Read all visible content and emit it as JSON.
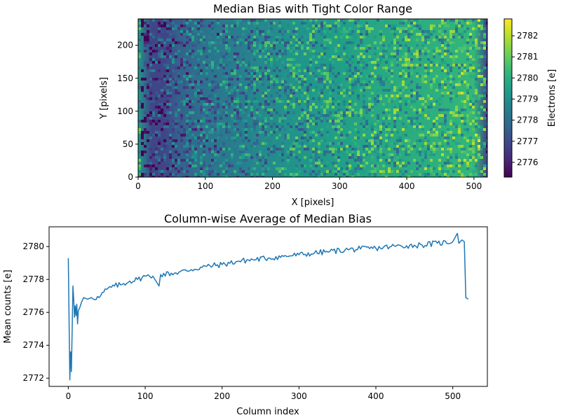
{
  "chart_data": [
    {
      "type": "heatmap",
      "title": "Median Bias with Tight Color Range",
      "xlabel": "X [pixels]",
      "ylabel": "Y [pixels]",
      "xlim": [
        0,
        520
      ],
      "ylim": [
        0,
        240
      ],
      "x_ticks": [
        0,
        100,
        200,
        300,
        400,
        500
      ],
      "y_ticks": [
        0,
        50,
        100,
        150,
        200
      ],
      "colormap": "viridis",
      "colorbar": {
        "label": "Electrons [e]",
        "range": [
          2775.3,
          2782.8
        ],
        "ticks": [
          2776,
          2777,
          2778,
          2779,
          2780,
          2781,
          2782
        ]
      },
      "trend": "values rise from about 2776 e on the left edge to about 2780.5 e near x=510, with a dark (low) column band near x=0-40 and a fine grid pattern"
    },
    {
      "type": "line",
      "title": "Column-wise Average of Median Bias",
      "xlabel": "Column index",
      "ylabel": "Mean counts [e]",
      "xlim": [
        -25,
        545
      ],
      "ylim": [
        2771.5,
        2781.2
      ],
      "x_ticks": [
        0,
        100,
        200,
        300,
        400,
        500
      ],
      "y_ticks": [
        2772,
        2774,
        2776,
        2778,
        2780
      ],
      "color": "#1f77b4",
      "points": [
        [
          0,
          2779.3
        ],
        [
          1,
          2775.5
        ],
        [
          2,
          2771.9
        ],
        [
          3,
          2773.6
        ],
        [
          4,
          2772.4
        ],
        [
          5,
          2774.9
        ],
        [
          6,
          2777.6
        ],
        [
          7,
          2776.8
        ],
        [
          8,
          2775.7
        ],
        [
          9,
          2776.4
        ],
        [
          10,
          2775.8
        ],
        [
          11,
          2776.5
        ],
        [
          12,
          2775.3
        ],
        [
          13,
          2776.1
        ],
        [
          15,
          2776.3
        ],
        [
          17,
          2776.6
        ],
        [
          20,
          2776.9
        ],
        [
          25,
          2776.8
        ],
        [
          30,
          2776.9
        ],
        [
          40,
          2776.9
        ],
        [
          50,
          2777.4
        ],
        [
          60,
          2777.6
        ],
        [
          70,
          2777.7
        ],
        [
          80,
          2777.9
        ],
        [
          90,
          2778.0
        ],
        [
          100,
          2778.2
        ],
        [
          110,
          2778.2
        ],
        [
          118,
          2777.6
        ],
        [
          120,
          2778.3
        ],
        [
          140,
          2778.4
        ],
        [
          160,
          2778.6
        ],
        [
          180,
          2778.8
        ],
        [
          200,
          2778.9
        ],
        [
          220,
          2779.1
        ],
        [
          240,
          2779.2
        ],
        [
          260,
          2779.3
        ],
        [
          280,
          2779.4
        ],
        [
          300,
          2779.5
        ],
        [
          320,
          2779.6
        ],
        [
          340,
          2779.7
        ],
        [
          360,
          2779.8
        ],
        [
          380,
          2779.85
        ],
        [
          400,
          2779.9
        ],
        [
          420,
          2780.0
        ],
        [
          440,
          2780.05
        ],
        [
          460,
          2780.1
        ],
        [
          480,
          2780.2
        ],
        [
          500,
          2780.3
        ],
        [
          506,
          2780.8
        ],
        [
          508,
          2780.2
        ],
        [
          512,
          2780.4
        ],
        [
          515,
          2780.3
        ],
        [
          517,
          2776.9
        ],
        [
          520,
          2776.8
        ]
      ]
    }
  ]
}
